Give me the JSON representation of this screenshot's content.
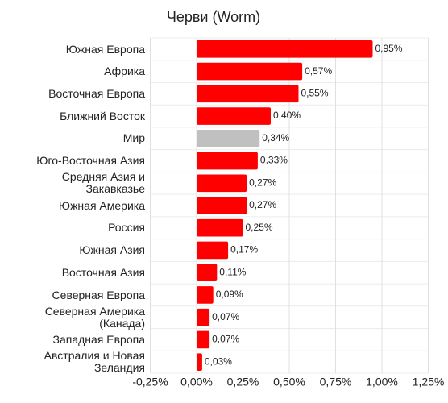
{
  "chart_data": {
    "type": "bar",
    "orientation": "horizontal",
    "title": "Черви (Worm)",
    "categories": [
      "Южная Европа",
      "Африка",
      "Восточная Европа",
      "Ближний Восток",
      "Мир",
      "Юго-Восточная Азия",
      "Средняя Азия и Закавказье",
      "Южная Америка",
      "Россия",
      "Южная Азия",
      "Восточная Азия",
      "Северная Европа",
      "Северная Америка (Канада)",
      "Западная Европа",
      "Австралия и Новая Зеландия"
    ],
    "values": [
      0.95,
      0.57,
      0.55,
      0.4,
      0.34,
      0.33,
      0.27,
      0.27,
      0.25,
      0.17,
      0.11,
      0.09,
      0.07,
      0.07,
      0.03
    ],
    "value_labels": [
      "0,95%",
      "0,57%",
      "0,55%",
      "0,40%",
      "0,34%",
      "0,33%",
      "0,27%",
      "0,27%",
      "0,25%",
      "0,17%",
      "0,11%",
      "0,09%",
      "0,07%",
      "0,07%",
      "0,03%"
    ],
    "colors": [
      "#ff0000",
      "#ff0000",
      "#ff0000",
      "#ff0000",
      "#c0c0c0",
      "#ff0000",
      "#ff0000",
      "#ff0000",
      "#ff0000",
      "#ff0000",
      "#ff0000",
      "#ff0000",
      "#ff0000",
      "#ff0000",
      "#ff0000"
    ],
    "xlim": [
      -0.25,
      1.25
    ],
    "xticks": [
      {
        "value": -0.25,
        "label": "-0,25%"
      },
      {
        "value": 0,
        "label": "0,00%"
      },
      {
        "value": 0.25,
        "label": "0,25%"
      },
      {
        "value": 0.5,
        "label": "0,50%"
      },
      {
        "value": 0.75,
        "label": "0,75%"
      },
      {
        "value": 1,
        "label": "1,00%"
      },
      {
        "value": 1.25,
        "label": "1,25%"
      }
    ],
    "grid": true
  }
}
